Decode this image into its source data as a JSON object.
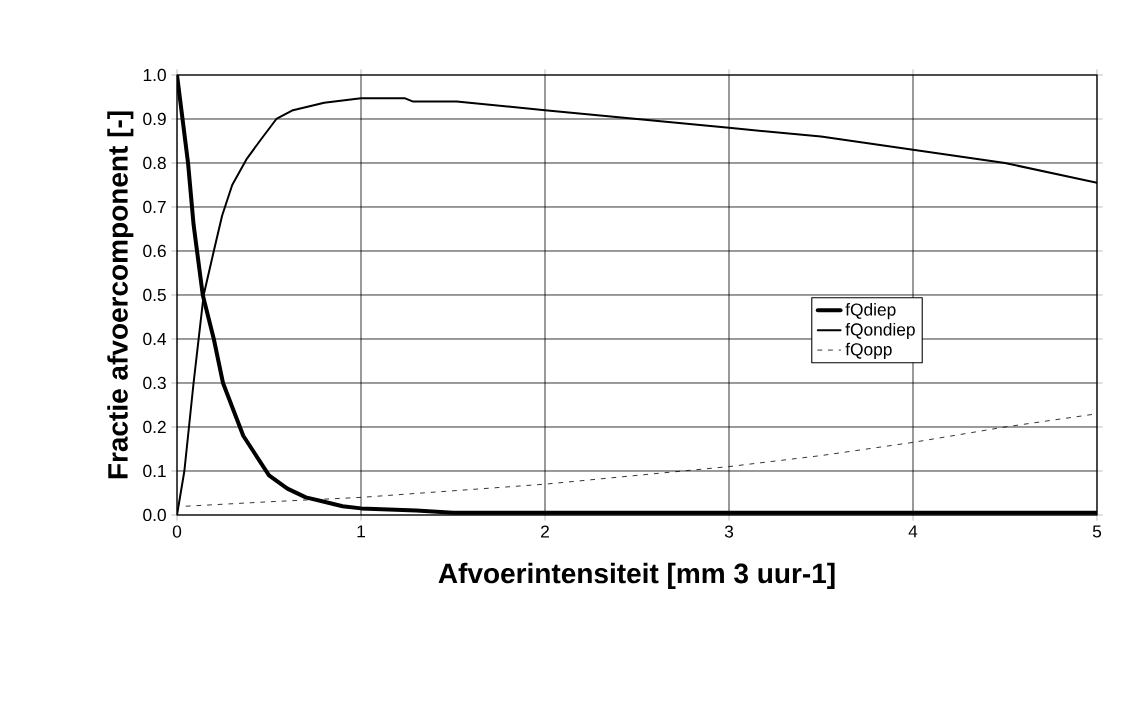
{
  "chart_data": {
    "type": "line",
    "xlabel": "Afvoerintensiteit [mm 3 uur-1]",
    "ylabel": "Fractie afvoercomponent [-]",
    "xlim": [
      0,
      5
    ],
    "xticks": [
      0,
      1,
      2,
      3,
      4,
      5
    ],
    "ylim": [
      0,
      1
    ],
    "yticks": [
      {
        "value": 0,
        "label": "0.0"
      },
      0.1,
      0.2,
      0.3,
      0.4,
      0.5,
      0.6,
      0.7,
      0.8,
      0.9,
      {
        "value": 1,
        "label": "1.0"
      }
    ],
    "grid": true,
    "legend": "right",
    "marker": "none",
    "series": [
      {
        "name": "fQdiep",
        "color": "#000000",
        "line_style": "solid",
        "x": [
          0,
          0.03,
          0.06,
          0.09,
          0.14,
          0.2,
          0.25,
          0.36,
          0.5,
          0.6,
          0.7,
          0.8,
          0.9,
          1,
          1.3,
          1.5,
          2,
          3,
          4,
          5
        ],
        "values": [
          1,
          0.9,
          0.8,
          0.66,
          0.5,
          0.4,
          0.3,
          0.18,
          0.09,
          0.06,
          0.04,
          0.03,
          0.02,
          0.015,
          0.01,
          0.005,
          0.005,
          0.005,
          0.005,
          0.005
        ]
      },
      {
        "name": "fQondiep",
        "color": "#000000",
        "line_style": "solid",
        "x": [
          0,
          0.04,
          0.09,
          0.145,
          0.2,
          0.245,
          0.3,
          0.38,
          0.45,
          0.54,
          0.63,
          0.8,
          1,
          1.24,
          1.28,
          1.52,
          2,
          2.5,
          3,
          3.5,
          4,
          4.5,
          5
        ],
        "values": [
          0,
          0.1,
          0.3,
          0.5,
          0.6,
          0.68,
          0.75,
          0.81,
          0.85,
          0.9,
          0.92,
          0.937,
          0.947,
          0.947,
          0.94,
          0.94,
          0.92,
          0.9,
          0.88,
          0.86,
          0.83,
          0.8,
          0.755
        ]
      },
      {
        "name": "fQopp",
        "color": "#000000",
        "line_style": "dashed",
        "x": [
          0.05,
          0.5,
          1,
          1.5,
          2,
          2.5,
          3,
          3.5,
          4,
          4.5,
          5
        ],
        "values": [
          0.02,
          0.03,
          0.04,
          0.055,
          0.07,
          0.09,
          0.11,
          0.135,
          0.165,
          0.2,
          0.23
        ]
      }
    ]
  }
}
